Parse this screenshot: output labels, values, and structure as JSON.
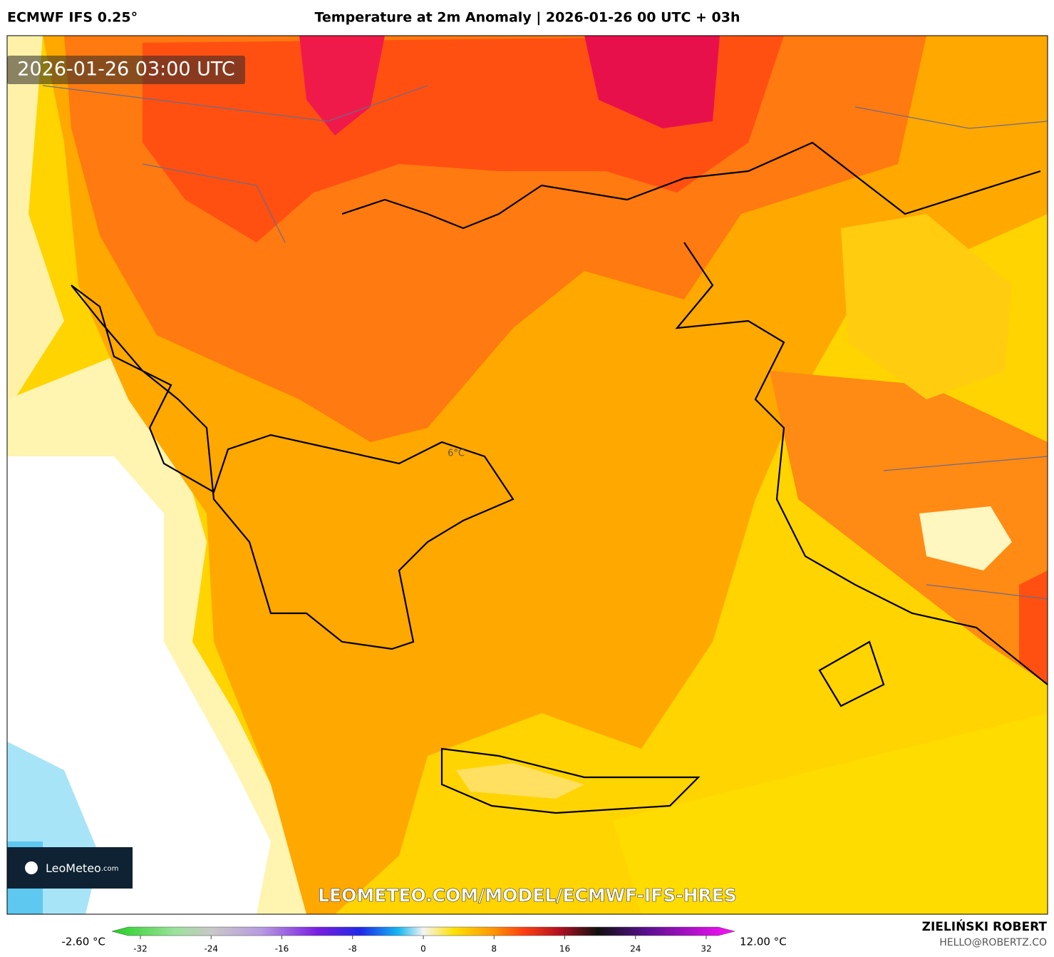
{
  "header": {
    "model": "ECMWF IFS 0.25°",
    "title": "Temperature at 2m Anomaly | 2026-01-26 00 UTC + 03h"
  },
  "map": {
    "valid_time": "2026-01-26 03:00 UTC",
    "contour_label": "6°C",
    "watermark": "LEOMETEO.COM/MODEL/ECMWF-IFS-HRES",
    "logo": {
      "brand": "LeoMeteo",
      "suffix": ".com"
    }
  },
  "colorbar": {
    "min_label": "-2.60 °C",
    "max_label": "12.00 °C",
    "ticks": [
      -32,
      -24,
      -16,
      -8,
      0,
      8,
      16,
      24,
      32
    ]
  },
  "footer": {
    "author": "ZIELIŃSKI ROBERT",
    "email": "HELLO@ROBERTZ.CO"
  }
}
